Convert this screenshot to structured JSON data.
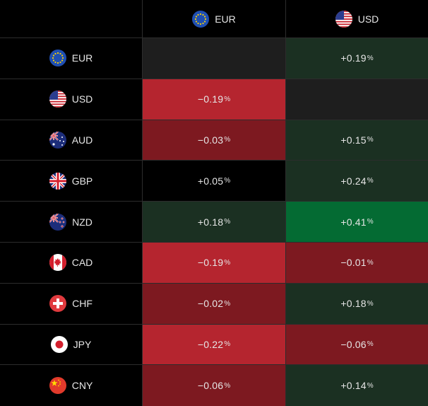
{
  "colors": {
    "neutral": "#000000",
    "empty": "#1e1e1e",
    "light_green": "#1b3022",
    "strong_green": "#046b33",
    "light_red": "#7d1920",
    "strong_red": "#b5252f"
  },
  "columns": [
    {
      "code": "EUR",
      "flag": "eu-flag-icon"
    },
    {
      "code": "USD",
      "flag": "us-flag-icon"
    }
  ],
  "rows": [
    {
      "code": "EUR",
      "flag": "eu-flag-icon",
      "cells": [
        {
          "value": "",
          "pct": "",
          "bg": "#1e1e1e"
        },
        {
          "value": "+0.19",
          "pct": "%",
          "bg": "#1b3022"
        }
      ]
    },
    {
      "code": "USD",
      "flag": "us-flag-icon",
      "cells": [
        {
          "value": "−0.19",
          "pct": "%",
          "bg": "#b5252f"
        },
        {
          "value": "",
          "pct": "",
          "bg": "#1e1e1e"
        }
      ]
    },
    {
      "code": "AUD",
      "flag": "au-flag-icon",
      "cells": [
        {
          "value": "−0.03",
          "pct": "%",
          "bg": "#7d1920"
        },
        {
          "value": "+0.15",
          "pct": "%",
          "bg": "#1b3022"
        }
      ]
    },
    {
      "code": "GBP",
      "flag": "gb-flag-icon",
      "cells": [
        {
          "value": "+0.05",
          "pct": "%",
          "bg": "#000000"
        },
        {
          "value": "+0.24",
          "pct": "%",
          "bg": "#1b3022"
        }
      ]
    },
    {
      "code": "NZD",
      "flag": "nz-flag-icon",
      "cells": [
        {
          "value": "+0.18",
          "pct": "%",
          "bg": "#1b3022"
        },
        {
          "value": "+0.41",
          "pct": "%",
          "bg": "#046b33"
        }
      ]
    },
    {
      "code": "CAD",
      "flag": "ca-flag-icon",
      "cells": [
        {
          "value": "−0.19",
          "pct": "%",
          "bg": "#b5252f"
        },
        {
          "value": "−0.01",
          "pct": "%",
          "bg": "#7d1920"
        }
      ]
    },
    {
      "code": "CHF",
      "flag": "ch-flag-icon",
      "cells": [
        {
          "value": "−0.02",
          "pct": "%",
          "bg": "#7d1920"
        },
        {
          "value": "+0.18",
          "pct": "%",
          "bg": "#1b3022"
        }
      ]
    },
    {
      "code": "JPY",
      "flag": "jp-flag-icon",
      "cells": [
        {
          "value": "−0.22",
          "pct": "%",
          "bg": "#b5252f"
        },
        {
          "value": "−0.06",
          "pct": "%",
          "bg": "#7d1920"
        }
      ]
    },
    {
      "code": "CNY",
      "flag": "cn-flag-icon",
      "cells": [
        {
          "value": "−0.06",
          "pct": "%",
          "bg": "#7d1920"
        },
        {
          "value": "+0.14",
          "pct": "%",
          "bg": "#1b3022"
        }
      ]
    }
  ]
}
